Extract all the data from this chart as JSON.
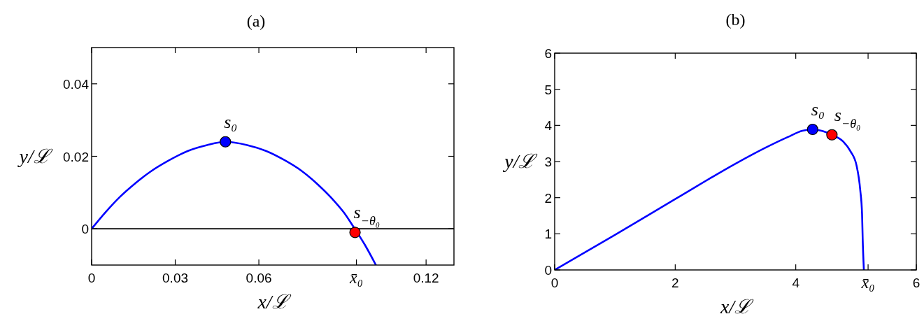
{
  "chart_data": [
    {
      "type": "line",
      "title": "(a)",
      "xlabel": "x/ℒ",
      "ylabel": "y/ℒ",
      "xlim": [
        0,
        0.13
      ],
      "ylim": [
        -0.01,
        0.05
      ],
      "xticks": [
        0,
        0.03,
        0.06,
        {
          "value": 0.095,
          "label": "x̄₀"
        },
        0.12
      ],
      "yticks": [
        0,
        0.02,
        0.04
      ],
      "ref_lines": [
        {
          "axis": "y",
          "value": 0,
          "color": "#000000"
        }
      ],
      "series": [
        {
          "color": "#0000ff",
          "x": [
            0,
            0.0049,
            0.01,
            0.0151,
            0.021,
            0.0278,
            0.0346,
            0.0414,
            0.048,
            0.0558,
            0.0625,
            0.0693,
            0.0753,
            0.0812,
            0.0863,
            0.0905,
            0.0939,
            0.0981,
            0.102
          ],
          "values": [
            0,
            0.0045,
            0.0087,
            0.0122,
            0.0157,
            0.0189,
            0.0215,
            0.0231,
            0.024,
            0.0231,
            0.0215,
            0.0189,
            0.016,
            0.0122,
            0.0083,
            0.0045,
            0.0006,
            -0.0045,
            -0.01
          ]
        },
        {
          "type": "scatter",
          "name": "s₀",
          "color": "#0000ff",
          "marker": "circle",
          "x": [
            0.048
          ],
          "values": [
            0.024
          ]
        },
        {
          "type": "scatter",
          "name": "s$_{−θ₀}$",
          "color": "#ff0000",
          "marker": "circle",
          "x": [
            0.0945
          ],
          "values": [
            -0.001
          ]
        }
      ]
    },
    {
      "type": "line",
      "title": "(b)",
      "xlabel": "x/ℒ",
      "ylabel": "y/ℒ",
      "xlim": [
        0,
        6
      ],
      "ylim": [
        0,
        6
      ],
      "xticks": [
        0,
        2,
        4,
        {
          "value": 5.2,
          "label": "x̄₀"
        },
        6
      ],
      "yticks": [
        0,
        1,
        2,
        3,
        4,
        5,
        6
      ],
      "series": [
        {
          "color": "#0000ff",
          "x": [
            0,
            1.0,
            2.0,
            3.01,
            3.47,
            3.87,
            4.11,
            4.28,
            4.45,
            4.6,
            4.79,
            4.91,
            5.01,
            5.07,
            5.1,
            5.11,
            5.13
          ],
          "values": [
            0,
            0.97,
            1.96,
            2.95,
            3.36,
            3.68,
            3.85,
            3.89,
            3.84,
            3.74,
            3.55,
            3.28,
            2.88,
            2.21,
            1.55,
            0.88,
            0
          ]
        },
        {
          "type": "scatter",
          "name": "s₀",
          "color": "#0000ff",
          "marker": "circle",
          "x": [
            4.28
          ],
          "values": [
            3.89
          ]
        },
        {
          "type": "scatter",
          "name": "s$_{−θ₀}$",
          "color": "#ff0000",
          "marker": "circle",
          "x": [
            4.6
          ],
          "values": [
            3.74
          ]
        }
      ]
    }
  ]
}
